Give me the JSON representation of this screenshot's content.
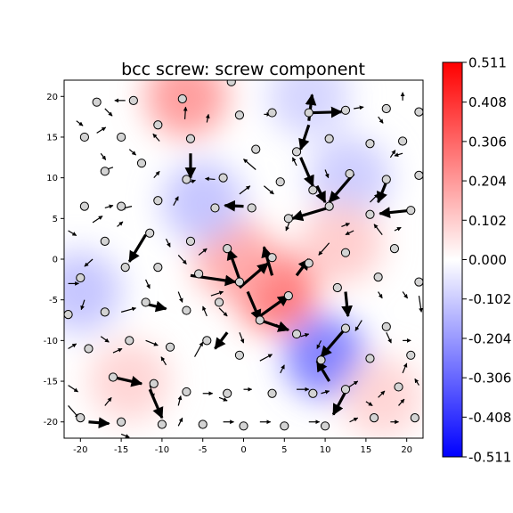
{
  "chart_data": {
    "type": "heatmap",
    "title": "bcc screw: screw component",
    "xlabel": "",
    "ylabel": "",
    "xlim": [
      -22,
      22
    ],
    "ylim": [
      -22,
      22
    ],
    "xticks": [
      -20,
      -15,
      -10,
      -5,
      0,
      5,
      10,
      15,
      20
    ],
    "yticks": [
      -20,
      -15,
      -10,
      -5,
      0,
      5,
      10,
      15,
      20
    ],
    "grid": false,
    "colormap": "bwr",
    "colorbar": {
      "min": -0.511,
      "max": 0.511,
      "ticks": [
        "0.511",
        "0.408",
        "0.306",
        "0.204",
        "0.102",
        "0.000",
        "-0.102",
        "-0.204",
        "-0.306",
        "-0.408",
        "-0.511"
      ],
      "tick_values": [
        0.511,
        0.408,
        0.306,
        0.204,
        0.102,
        0.0,
        -0.102,
        -0.204,
        -0.306,
        -0.408,
        -0.511
      ]
    },
    "field_blobs": [
      {
        "x": -7,
        "y": 20,
        "value": 0.12
      },
      {
        "x": 4,
        "y": -4,
        "value": 0.16
      },
      {
        "x": -1,
        "y": 0,
        "value": 0.1
      },
      {
        "x": 8,
        "y": 20,
        "value": -0.05
      },
      {
        "x": 10,
        "y": -12,
        "value": -0.15
      },
      {
        "x": -5,
        "y": 7,
        "value": -0.07
      },
      {
        "x": 13,
        "y": 10,
        "value": -0.06
      },
      {
        "x": -20,
        "y": -4,
        "value": -0.07
      },
      {
        "x": 12,
        "y": 2,
        "value": 0.06
      },
      {
        "x": -14,
        "y": -15,
        "value": 0.05
      },
      {
        "x": 17,
        "y": -17,
        "value": 0.05
      }
    ],
    "atoms": [
      [
        -20,
        -19.5
      ],
      [
        -15,
        -20
      ],
      [
        -10,
        -20.3
      ],
      [
        -5,
        -20.3
      ],
      [
        0,
        -20.5
      ],
      [
        5,
        -20.5
      ],
      [
        10,
        -20.5
      ],
      [
        16,
        -19.5
      ],
      [
        21,
        -19.5
      ],
      [
        -16,
        -14.5
      ],
      [
        -11,
        -15.3
      ],
      [
        -7,
        -16.3
      ],
      [
        -2,
        -16.5
      ],
      [
        3.5,
        -16.5
      ],
      [
        8.5,
        -16.5
      ],
      [
        12.5,
        -16
      ],
      [
        19,
        -15.7
      ],
      [
        -19,
        -11
      ],
      [
        -14,
        -10
      ],
      [
        -9,
        -10.8
      ],
      [
        -4.5,
        -10
      ],
      [
        -0.5,
        -11.8
      ],
      [
        9.5,
        -12.4
      ],
      [
        15.5,
        -12.2
      ],
      [
        20.5,
        -11.8
      ],
      [
        -21.5,
        -6.8
      ],
      [
        -17,
        -6.5
      ],
      [
        -12,
        -5.3
      ],
      [
        -7,
        -6.3
      ],
      [
        -3,
        -5.3
      ],
      [
        2,
        -7.5
      ],
      [
        6.5,
        -9.2
      ],
      [
        12.5,
        -8.5
      ],
      [
        17.5,
        -8.3
      ],
      [
        -20,
        -2.3
      ],
      [
        -14.5,
        -1
      ],
      [
        -10.5,
        -1
      ],
      [
        -5.5,
        -1.8
      ],
      [
        -0.5,
        -2.8
      ],
      [
        3.5,
        0.2
      ],
      [
        5.5,
        -4.5
      ],
      [
        8,
        -0.5
      ],
      [
        11.5,
        -3.5
      ],
      [
        12.5,
        0.8
      ],
      [
        16.5,
        -2.2
      ],
      [
        21.5,
        -2.8
      ],
      [
        -17,
        2.2
      ],
      [
        -11.5,
        3.2
      ],
      [
        -6.5,
        2.2
      ],
      [
        -2,
        1.3
      ],
      [
        18.5,
        1.3
      ],
      [
        -19.5,
        6.5
      ],
      [
        -15,
        6.5
      ],
      [
        -10.5,
        7.2
      ],
      [
        -3.5,
        6.3
      ],
      [
        1,
        6.3
      ],
      [
        5.5,
        5
      ],
      [
        10.5,
        6.5
      ],
      [
        15.5,
        5.5
      ],
      [
        20.5,
        6
      ],
      [
        -17,
        10.8
      ],
      [
        -12.5,
        11.8
      ],
      [
        -7,
        9.8
      ],
      [
        -2.5,
        10
      ],
      [
        4.5,
        9.5
      ],
      [
        8.5,
        8.5
      ],
      [
        13,
        10.5
      ],
      [
        17.5,
        9.8
      ],
      [
        21.5,
        10.3
      ],
      [
        -19.5,
        15
      ],
      [
        -15,
        15
      ],
      [
        -10.5,
        16.5
      ],
      [
        -6.5,
        14.8
      ],
      [
        1.5,
        13.5
      ],
      [
        6.5,
        13.2
      ],
      [
        10.5,
        14.8
      ],
      [
        15.5,
        14.2
      ],
      [
        19.5,
        14.5
      ],
      [
        -18,
        19.3
      ],
      [
        -13.5,
        19.5
      ],
      [
        -7.5,
        19.7
      ],
      [
        -1.5,
        21.8
      ],
      [
        -0.5,
        17.7
      ],
      [
        3.5,
        18
      ],
      [
        8,
        18
      ],
      [
        12.5,
        18.3
      ],
      [
        17.5,
        18.5
      ],
      [
        21.5,
        18.1
      ]
    ],
    "arrows": [
      [
        -17,
        18.5,
        0.9,
        -0.9
      ],
      [
        -14.5,
        19.5,
        -1.3,
        0
      ],
      [
        -20.5,
        17,
        0.8,
        -0.6
      ],
      [
        -18,
        15.5,
        1.1,
        0.7
      ],
      [
        -14,
        13.5,
        0.8,
        -0.7
      ],
      [
        -10.3,
        14.5,
        -0.8,
        0.9
      ],
      [
        -4.5,
        16.8,
        0.2,
        1.0
      ],
      [
        -7.2,
        17.2,
        0.1,
        1.5
      ],
      [
        -6.5,
        13,
        0,
        -3
      ],
      [
        -17.5,
        13,
        0.6,
        -0.8
      ],
      [
        -16,
        11.3,
        -1.2,
        -0.4
      ],
      [
        -11,
        10,
        0.7,
        0.8
      ],
      [
        -8.6,
        6.6,
        0.6,
        1.1
      ],
      [
        -13.7,
        6.5,
        -1.3,
        -0.3
      ],
      [
        -17,
        6.3,
        1.0,
        0.3
      ],
      [
        -6.5,
        9.5,
        0.6,
        0.2
      ],
      [
        -3.5,
        9.8,
        -1.2,
        0.1
      ],
      [
        1.5,
        11,
        -1.5,
        1.3
      ],
      [
        -0.5,
        8,
        1.3,
        1.0
      ],
      [
        0,
        6.5,
        -2.3,
        0.1
      ],
      [
        2.5,
        9,
        1.2,
        -1.0
      ],
      [
        6.5,
        11.5,
        -0.5,
        1.0
      ],
      [
        10,
        11,
        0.4,
        -1.0
      ],
      [
        8,
        16.5,
        -1,
        -3
      ],
      [
        8,
        17,
        0.4,
        3.2
      ],
      [
        2.5,
        17.8,
        0.8,
        0
      ],
      [
        8.5,
        18,
        3.5,
        0.1
      ],
      [
        13.5,
        18.5,
        1.2,
        0.2
      ],
      [
        16.5,
        17.5,
        0.6,
        -0.8
      ],
      [
        19.5,
        19.5,
        0,
        1
      ],
      [
        15,
        14,
        1,
        0.5
      ],
      [
        18,
        12.5,
        0.6,
        0.9
      ],
      [
        19.5,
        13,
        -1.0,
        -0.3
      ],
      [
        17.5,
        9.5,
        -1.0,
        -2.5
      ],
      [
        15.5,
        7,
        1,
        1
      ],
      [
        20.5,
        6,
        -3.8,
        -0.4
      ],
      [
        18.5,
        3.5,
        0.8,
        0.4
      ],
      [
        17,
        3,
        -1.0,
        1.3
      ],
      [
        13.5,
        10.5,
        -3,
        -3.5
      ],
      [
        9,
        9,
        1,
        -2
      ],
      [
        7,
        12.5,
        1.5,
        -3.5
      ],
      [
        11,
        6.5,
        -5,
        -1.5
      ],
      [
        6,
        5.5,
        -0.8,
        -2.0
      ],
      [
        12,
        4,
        1.0,
        0.4
      ],
      [
        13.5,
        3.5,
        -1.0,
        -0.5
      ],
      [
        10.5,
        2,
        -1.3,
        -1.5
      ],
      [
        -15.5,
        4,
        0.7,
        0.6
      ],
      [
        -18.5,
        4.5,
        1.2,
        0.8
      ],
      [
        -21.5,
        3.5,
        1.0,
        -0.6
      ],
      [
        -18.5,
        0,
        -1.0,
        -0.9
      ],
      [
        -12,
        3,
        -2,
        -3.3
      ],
      [
        -9.5,
        2.5,
        0.5,
        -1.0
      ],
      [
        -12,
        -2.5,
        0.5,
        -1.1
      ],
      [
        -8,
        0.5,
        1.0,
        -1.1
      ],
      [
        -5.5,
        0.5,
        1.0,
        0.8
      ],
      [
        -6.5,
        -2,
        5.5,
        -0.8
      ],
      [
        -0.5,
        -2.5,
        -1.3,
        3.7
      ],
      [
        -0.5,
        -3.5,
        3.5,
        3
      ],
      [
        3.5,
        -2,
        -1,
        3.5
      ],
      [
        0.5,
        -4,
        1.5,
        -3.5
      ],
      [
        2,
        -7,
        3.5,
        2.5
      ],
      [
        2,
        -7.5,
        3.5,
        -1.2
      ],
      [
        6.5,
        -2,
        1.5,
        2
      ],
      [
        12.5,
        -4,
        0.3,
        -3
      ],
      [
        12.5,
        -8.5,
        -3,
        -3.5
      ],
      [
        16.5,
        -4,
        0.5,
        -0.8
      ],
      [
        19.5,
        -4,
        0.6,
        -0.8
      ],
      [
        21.5,
        -4.5,
        0.3,
        -2
      ],
      [
        -21.5,
        -3,
        1.3,
        0
      ],
      [
        -19.5,
        -5,
        -0.4,
        -1.2
      ],
      [
        -15,
        -6.5,
        1.8,
        0.5
      ],
      [
        -12,
        -5.5,
        2.5,
        -0.6
      ],
      [
        -8,
        -4,
        0.5,
        -1.3
      ],
      [
        -4,
        -4.5,
        1.5,
        0.5
      ],
      [
        -4.5,
        -7,
        -0.5,
        1.2
      ],
      [
        -3,
        -6,
        1,
        -1
      ],
      [
        -0.5,
        -9,
        0.5,
        -1.3
      ],
      [
        4,
        -8,
        1,
        -0.8
      ],
      [
        7,
        -9.5,
        1.0,
        0.3
      ],
      [
        9.5,
        -10,
        -0.5,
        -1
      ],
      [
        14.5,
        -7.5,
        -0.8,
        -1.3
      ],
      [
        17.5,
        -9,
        0.6,
        -1.3
      ],
      [
        19.5,
        -10,
        1,
        0
      ],
      [
        -21.5,
        -11,
        1.0,
        0.6
      ],
      [
        -17.5,
        -9.5,
        1.0,
        -0.7
      ],
      [
        -16,
        -11.5,
        1.1,
        0.5
      ],
      [
        -12,
        -10,
        1.5,
        -0.6
      ],
      [
        -9.5,
        -13,
        -0.6,
        1.0
      ],
      [
        -6,
        -12,
        1,
        1.8
      ],
      [
        -2,
        -9,
        -1.5,
        -2
      ],
      [
        4.5,
        -14,
        0.5,
        1
      ],
      [
        2,
        -12.5,
        1.5,
        0.8
      ],
      [
        10.5,
        -15,
        -1.5,
        2.5
      ],
      [
        12.5,
        -16,
        1.5,
        1.0
      ],
      [
        16.5,
        -17,
        0.8,
        0.8
      ],
      [
        19.5,
        -14,
        0.5,
        1.2
      ],
      [
        21.5,
        -15.5,
        -0.5,
        0.8
      ],
      [
        -21.5,
        -15.5,
        1.2,
        -0.8
      ],
      [
        -17,
        -18,
        0.8,
        1
      ],
      [
        -16,
        -14.5,
        3.5,
        -0.8
      ],
      [
        -11.5,
        -15.5,
        0.5,
        -1.5
      ],
      [
        -8,
        -18,
        0.3,
        1.2
      ],
      [
        -5,
        -16.5,
        1.2,
        0
      ],
      [
        -3,
        -17,
        1.0,
        -0.4
      ],
      [
        0,
        -16,
        1,
        0
      ],
      [
        6.5,
        -16,
        1.5,
        0
      ],
      [
        9.5,
        -16.5,
        1.0,
        0.3
      ],
      [
        12.5,
        -16.3,
        -1.5,
        -2.8
      ],
      [
        15,
        -17.5,
        0.8,
        -0.5
      ],
      [
        19,
        -18,
        0.7,
        0.8
      ],
      [
        -21.5,
        -18,
        1.3,
        -1.5
      ],
      [
        -19,
        -20,
        2.5,
        -0.2
      ],
      [
        -15,
        -21.5,
        1,
        -0.4
      ],
      [
        -11.5,
        -16,
        1.5,
        -3.5
      ],
      [
        -8,
        -20.5,
        0.5,
        1
      ],
      [
        -2.5,
        -20,
        1.3,
        0
      ],
      [
        2,
        -20,
        1.3,
        0
      ],
      [
        8,
        -20,
        1.3,
        0
      ],
      [
        13,
        -20,
        1.0,
        0.5
      ],
      [
        18,
        -20,
        1,
        0
      ]
    ]
  }
}
